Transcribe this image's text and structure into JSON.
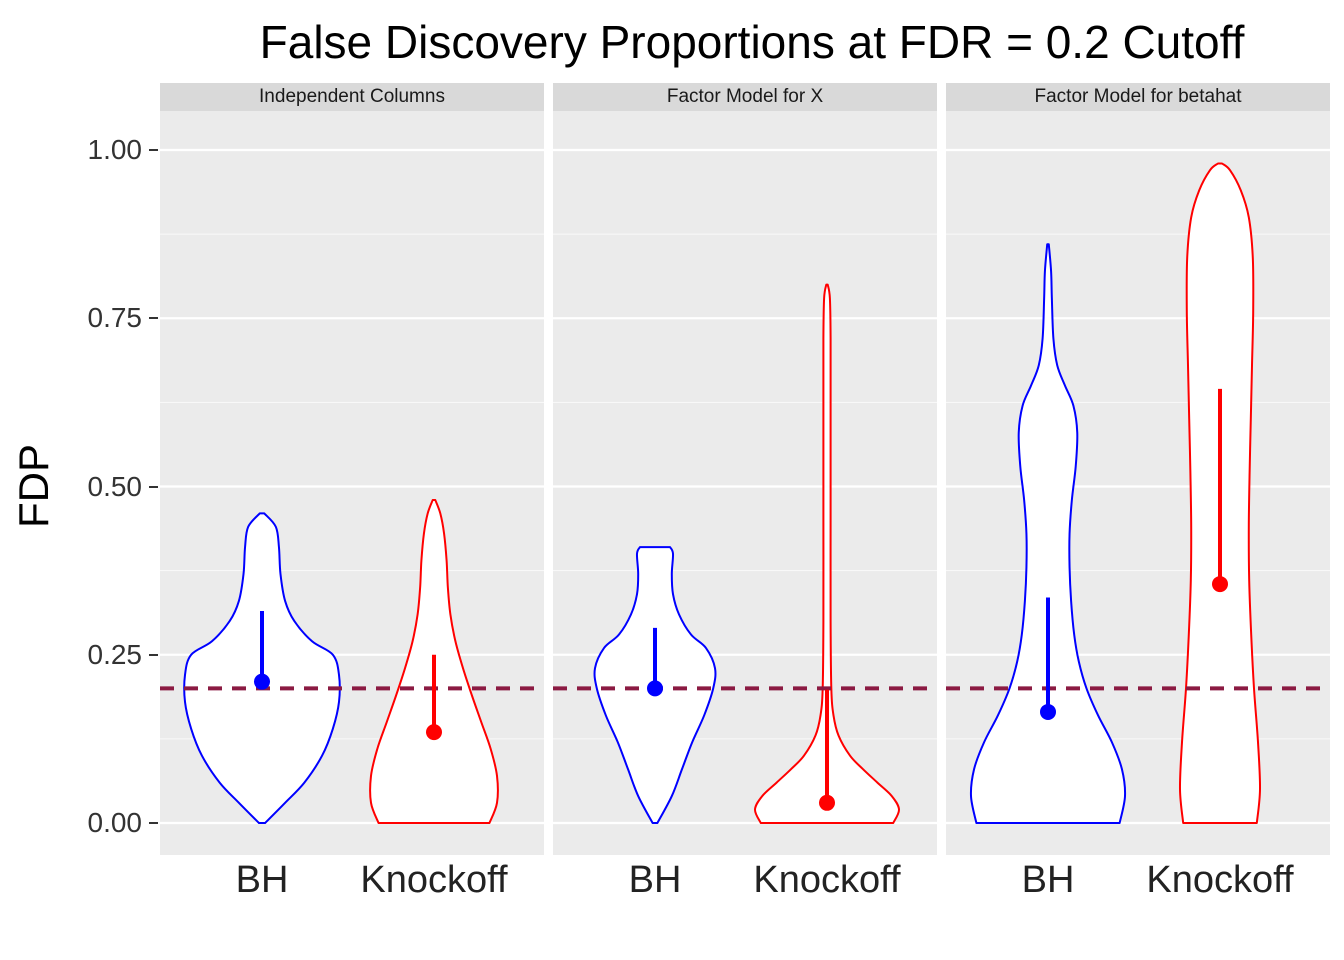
{
  "chart_data": {
    "type": "violin",
    "title": "False Discovery Proportions at FDR = 0.2 Cutoff",
    "ylabel": "FDP",
    "categories": [
      "BH",
      "Knockoff"
    ],
    "y_ticks": [
      {
        "label": "1.00",
        "value": 1.0
      },
      {
        "label": "0.75",
        "value": 0.75
      },
      {
        "label": "0.50",
        "value": 0.5
      },
      {
        "label": "0.25",
        "value": 0.25
      },
      {
        "label": "0.00",
        "value": 0.0
      }
    ],
    "ylim": [
      -0.05,
      1.05
    ],
    "grid": {
      "major": [
        0,
        0.25,
        0.5,
        0.75,
        1.0
      ],
      "minor": [
        0.125,
        0.375,
        0.625,
        0.875
      ]
    },
    "reference_line": {
      "y": 0.2,
      "color": "#8B1A42",
      "style": "dashed"
    },
    "colors": {
      "BH": "#0000FF",
      "Knockoff": "#FF0000",
      "panel_bg": "#EBEBEB",
      "strip_bg": "#D9D9D9",
      "grid": "#FFFFFF"
    },
    "facets": [
      {
        "label": "Independent Columns",
        "violins": [
          {
            "group": "BH",
            "x_index": 0,
            "color": "#0000FF",
            "y_range": [
              0.0,
              0.46
            ],
            "point": 0.21,
            "segment": [
              0.2,
              0.315
            ],
            "max_halfwidth": 77,
            "profile": [
              [
                0.0,
                0.04
              ],
              [
                0.03,
                0.3
              ],
              [
                0.06,
                0.55
              ],
              [
                0.1,
                0.78
              ],
              [
                0.14,
                0.92
              ],
              [
                0.18,
                1.0
              ],
              [
                0.22,
                1.0
              ],
              [
                0.25,
                0.92
              ],
              [
                0.27,
                0.65
              ],
              [
                0.3,
                0.42
              ],
              [
                0.33,
                0.3
              ],
              [
                0.37,
                0.24
              ],
              [
                0.41,
                0.22
              ],
              [
                0.44,
                0.18
              ],
              [
                0.46,
                0.03
              ]
            ]
          },
          {
            "group": "Knockoff",
            "x_index": 1,
            "color": "#FF0000",
            "y_range": [
              0.0,
              0.48
            ],
            "point": 0.135,
            "segment": [
              0.135,
              0.25
            ],
            "max_halfwidth": 63,
            "profile": [
              [
                0.0,
                0.88
              ],
              [
                0.03,
                1.0
              ],
              [
                0.07,
                1.0
              ],
              [
                0.11,
                0.9
              ],
              [
                0.15,
                0.75
              ],
              [
                0.19,
                0.6
              ],
              [
                0.23,
                0.46
              ],
              [
                0.27,
                0.34
              ],
              [
                0.31,
                0.26
              ],
              [
                0.35,
                0.22
              ],
              [
                0.39,
                0.2
              ],
              [
                0.43,
                0.16
              ],
              [
                0.46,
                0.1
              ],
              [
                0.48,
                0.02
              ]
            ]
          }
        ]
      },
      {
        "label": "Factor Model for X",
        "violins": [
          {
            "group": "BH",
            "x_index": 0,
            "color": "#0000FF",
            "y_range": [
              0.0,
              0.41
            ],
            "point": 0.2,
            "segment": [
              0.195,
              0.29
            ],
            "max_halfwidth": 60,
            "profile": [
              [
                0.0,
                0.04
              ],
              [
                0.04,
                0.28
              ],
              [
                0.08,
                0.45
              ],
              [
                0.12,
                0.62
              ],
              [
                0.16,
                0.82
              ],
              [
                0.2,
                0.97
              ],
              [
                0.23,
                1.0
              ],
              [
                0.26,
                0.85
              ],
              [
                0.28,
                0.6
              ],
              [
                0.31,
                0.4
              ],
              [
                0.34,
                0.3
              ],
              [
                0.37,
                0.28
              ],
              [
                0.4,
                0.3
              ],
              [
                0.41,
                0.25
              ]
            ]
          },
          {
            "group": "Knockoff",
            "x_index": 1,
            "color": "#FF0000",
            "y_range": [
              0.0,
              0.8
            ],
            "point": 0.03,
            "segment": [
              0.03,
              0.198
            ],
            "max_halfwidth": 72,
            "profile": [
              [
                0.0,
                0.92
              ],
              [
                0.02,
                1.0
              ],
              [
                0.04,
                0.9
              ],
              [
                0.06,
                0.7
              ],
              [
                0.08,
                0.5
              ],
              [
                0.1,
                0.32
              ],
              [
                0.13,
                0.16
              ],
              [
                0.16,
                0.09
              ],
              [
                0.2,
                0.06
              ],
              [
                0.3,
                0.05
              ],
              [
                0.45,
                0.05
              ],
              [
                0.6,
                0.05
              ],
              [
                0.72,
                0.05
              ],
              [
                0.78,
                0.04
              ],
              [
                0.8,
                0.01
              ]
            ]
          }
        ]
      },
      {
        "label": "Factor Model for betahat",
        "violins": [
          {
            "group": "BH",
            "x_index": 0,
            "color": "#0000FF",
            "y_range": [
              0.0,
              0.86
            ],
            "point": 0.165,
            "segment": [
              0.165,
              0.335
            ],
            "max_halfwidth": 77,
            "profile": [
              [
                0.0,
                0.93
              ],
              [
                0.04,
                1.0
              ],
              [
                0.08,
                0.96
              ],
              [
                0.12,
                0.83
              ],
              [
                0.16,
                0.65
              ],
              [
                0.2,
                0.5
              ],
              [
                0.24,
                0.4
              ],
              [
                0.28,
                0.34
              ],
              [
                0.33,
                0.3
              ],
              [
                0.38,
                0.28
              ],
              [
                0.43,
                0.28
              ],
              [
                0.48,
                0.31
              ],
              [
                0.53,
                0.36
              ],
              [
                0.58,
                0.38
              ],
              [
                0.62,
                0.33
              ],
              [
                0.65,
                0.22
              ],
              [
                0.68,
                0.12
              ],
              [
                0.72,
                0.07
              ],
              [
                0.78,
                0.05
              ],
              [
                0.82,
                0.04
              ],
              [
                0.86,
                0.01
              ]
            ]
          },
          {
            "group": "Knockoff",
            "x_index": 1,
            "color": "#FF0000",
            "y_range": [
              0.0,
              0.98
            ],
            "point": 0.355,
            "segment": [
              0.355,
              0.645
            ],
            "max_halfwidth": 40,
            "profile": [
              [
                0.0,
                0.92
              ],
              [
                0.05,
                1.0
              ],
              [
                0.12,
                0.95
              ],
              [
                0.2,
                0.85
              ],
              [
                0.28,
                0.78
              ],
              [
                0.36,
                0.73
              ],
              [
                0.44,
                0.72
              ],
              [
                0.52,
                0.74
              ],
              [
                0.6,
                0.77
              ],
              [
                0.68,
                0.8
              ],
              [
                0.76,
                0.83
              ],
              [
                0.84,
                0.82
              ],
              [
                0.9,
                0.72
              ],
              [
                0.94,
                0.52
              ],
              [
                0.97,
                0.25
              ],
              [
                0.98,
                0.05
              ]
            ]
          }
        ]
      }
    ]
  }
}
